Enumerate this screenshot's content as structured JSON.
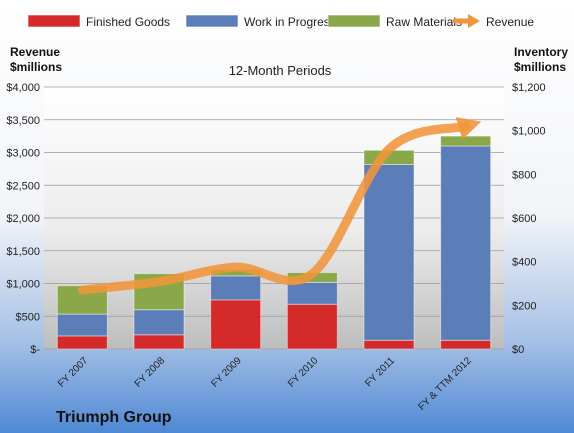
{
  "company": "Triumph Group",
  "chart_data": {
    "type": "bar",
    "subtitle": "12-Month Periods",
    "categories": [
      "FY 2007",
      "FY 2008",
      "FY 2009",
      "FY 2010",
      "FY 2011",
      "FY & TTM 2012"
    ],
    "series": [
      {
        "name": "Finished Goods",
        "color": "#d42a2a",
        "values": [
          60,
          65,
          225,
          205,
          40,
          40
        ]
      },
      {
        "name": "Work in Progress",
        "color": "#5b7db8",
        "values": [
          100,
          115,
          110,
          100,
          805,
          890
        ]
      },
      {
        "name": "Raw Materials",
        "color": "#8aa84a",
        "values": [
          130,
          165,
          30,
          45,
          65,
          45
        ]
      }
    ],
    "line": {
      "name": "Revenue",
      "color": "#f0953a",
      "values": [
        900,
        1030,
        1250,
        1150,
        3050,
        3400
      ]
    },
    "y_left": {
      "label_line1": "Revenue",
      "label_line2": "$millions",
      "min": 0,
      "max": 4000,
      "step": 500,
      "tick_labels": [
        "$-",
        "$500",
        "$1,000",
        "$1,500",
        "$2,000",
        "$2,500",
        "$3,000",
        "$3,500",
        "$4,000"
      ]
    },
    "y_right": {
      "label_line1": "Inventory",
      "label_line2": "$millions",
      "min": 0,
      "max": 1200,
      "step": 200,
      "tick_labels": [
        "$0",
        "$200",
        "$400",
        "$600",
        "$800",
        "$1,000",
        "$1,200"
      ]
    },
    "stacked": true,
    "grid": true,
    "legend_position": "top"
  }
}
